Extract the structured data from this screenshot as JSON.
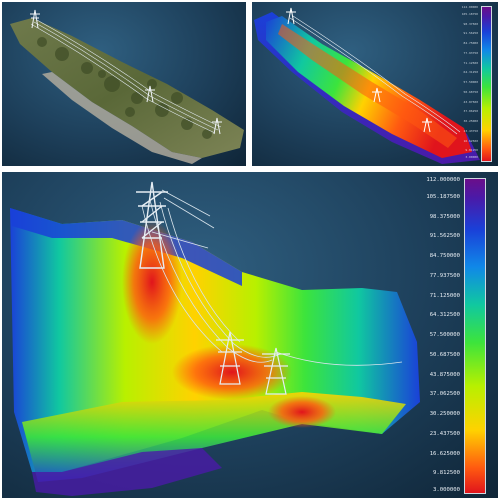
{
  "panels": {
    "top_left": {
      "name": "textured point cloud view"
    },
    "top_right": {
      "name": "elevation colored overview",
      "colorbar_labels": [
        "112.00000",
        "105.18750",
        "98.37500",
        "91.56250",
        "84.75000",
        "77.93750",
        "71.12500",
        "64.31250",
        "57.50000",
        "50.68750",
        "43.87500",
        "37.06250",
        "30.25000",
        "23.43750",
        "16.62500",
        "9.81250",
        "3.00000"
      ]
    },
    "bottom": {
      "name": "elevation colored detail view",
      "colorbar_labels": [
        "112.000000",
        "105.187500",
        "98.375000",
        "91.562500",
        "84.750000",
        "77.937500",
        "71.125000",
        "64.312500",
        "57.500000",
        "50.687500",
        "43.875000",
        "37.062500",
        "30.250000",
        "23.437500",
        "16.625000",
        "9.812500",
        "3.000000"
      ]
    }
  },
  "colors": {
    "background": "#1d3f5a",
    "high": "#6a0e8a",
    "mid_high": "#1a40d8",
    "mid": "#3ce43c",
    "mid_low": "#ffd200",
    "low": "#e0141c",
    "tower": "#d8e6ee"
  }
}
